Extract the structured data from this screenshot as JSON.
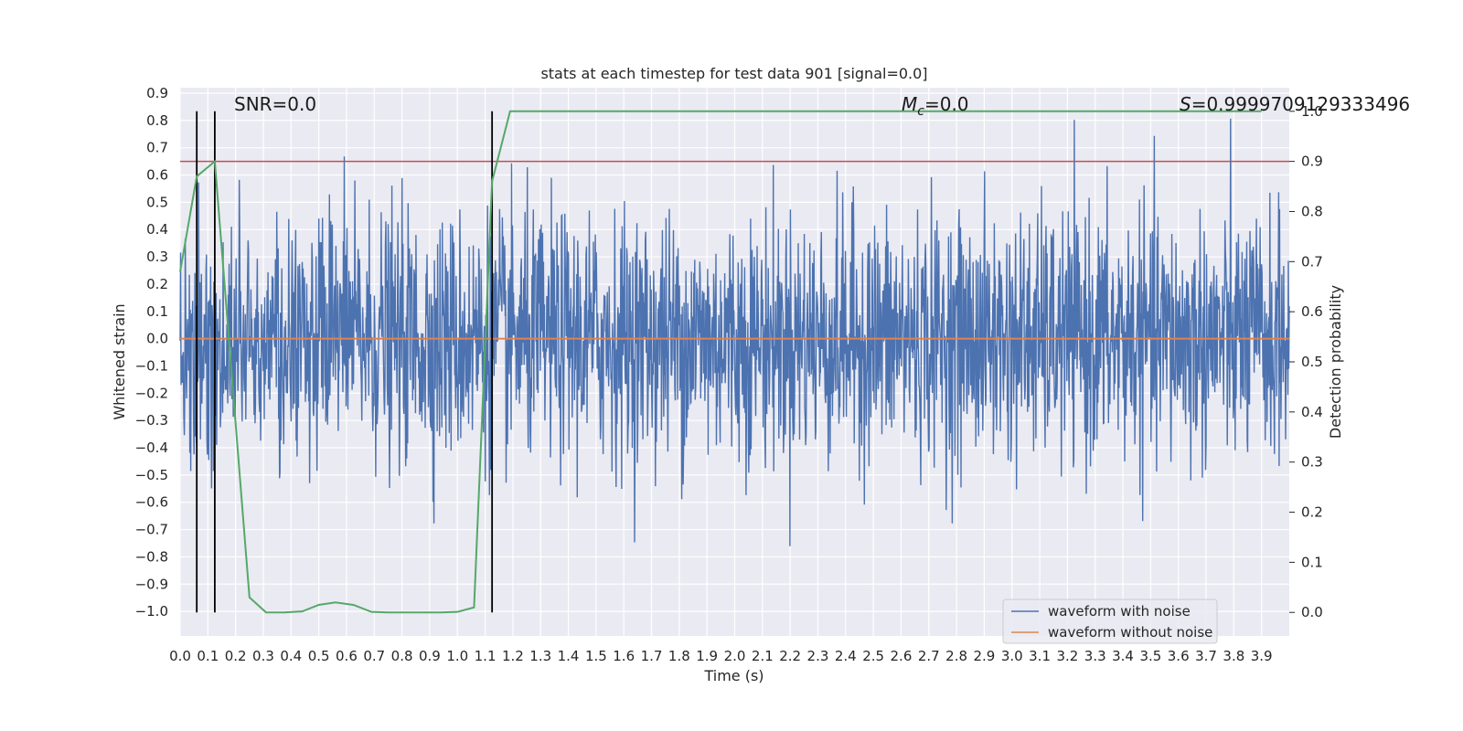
{
  "chart_data": {
    "type": "line",
    "title": "stats at each timestep for test data 901 [signal=0.0]",
    "xlabel": "Time (s)",
    "ylabel": "Whitened strain",
    "y2label": "Detection probability",
    "xlim": [
      0.0,
      4.0
    ],
    "ylim": [
      -1.09,
      0.92
    ],
    "y2lim": [
      -0.047,
      1.047
    ],
    "x_ticks": [
      0.0,
      0.1,
      0.2,
      0.3,
      0.4,
      0.5,
      0.6,
      0.7,
      0.8,
      0.9,
      1.0,
      1.1,
      1.2,
      1.3,
      1.4,
      1.5,
      1.6,
      1.7,
      1.8,
      1.9,
      2.0,
      2.1,
      2.2,
      2.3,
      2.4,
      2.5,
      2.6,
      2.7,
      2.8,
      2.9,
      3.0,
      3.1,
      3.2,
      3.3,
      3.4,
      3.5,
      3.6,
      3.7,
      3.8,
      3.9
    ],
    "x_tick_labels": [
      "0.0",
      "0.1",
      "0.2",
      "0.3",
      "0.4",
      "0.5",
      "0.6",
      "0.7",
      "0.8",
      "0.9",
      "1.0",
      "1.1",
      "1.2",
      "1.3",
      "1.4",
      "1.5",
      "1.6",
      "1.7",
      "1.8",
      "1.9",
      "2.0",
      "2.1",
      "2.2",
      "2.3",
      "2.4",
      "2.5",
      "2.6",
      "2.7",
      "2.8",
      "2.9",
      "3.0",
      "3.1",
      "3.2",
      "3.3",
      "3.4",
      "3.5",
      "3.6",
      "3.7",
      "3.8",
      "3.9"
    ],
    "y_ticks": [
      0.9,
      0.8,
      0.7,
      0.6,
      0.5,
      0.4,
      0.3,
      0.2,
      0.1,
      0.0,
      -0.1,
      -0.2,
      -0.3,
      -0.4,
      -0.5,
      -0.6,
      -0.7,
      -0.8,
      -0.9,
      -1.0
    ],
    "y_tick_labels": [
      "0.9",
      "0.8",
      "0.7",
      "0.6",
      "0.5",
      "0.4",
      "0.3",
      "0.2",
      "0.1",
      "0.0",
      "−0.1",
      "−0.2",
      "−0.3",
      "−0.4",
      "−0.5",
      "−0.6",
      "−0.7",
      "−0.8",
      "−0.9",
      "−1.0"
    ],
    "y2_ticks": [
      1.0,
      0.9,
      0.8,
      0.7,
      0.6,
      0.5,
      0.4,
      0.3,
      0.2,
      0.1,
      0.0
    ],
    "y2_tick_labels": [
      "1.0",
      "0.9",
      "0.8",
      "0.7",
      "0.6",
      "0.5",
      "0.4",
      "0.3",
      "0.2",
      "0.1",
      "0.0"
    ],
    "grid": true,
    "legend_position": "lower-right",
    "series": [
      {
        "name": "waveform with noise",
        "axis": "left",
        "color": "#4c72b0",
        "description_values": {
          "typical_abs_amplitude": 0.3,
          "max": 0.84,
          "min": -1.0,
          "duration_s": 4.0
        }
      },
      {
        "name": "waveform without noise",
        "axis": "left",
        "color": "#dd8452",
        "x": [
          0.0,
          4.0
        ],
        "values": [
          0.0,
          0.0
        ]
      },
      {
        "name": "detection probability",
        "axis": "right",
        "color": "#55a868",
        "x": [
          0.0,
          0.06,
          0.125,
          0.25,
          0.31,
          0.375,
          0.44,
          0.5,
          0.56,
          0.625,
          0.69,
          0.75,
          0.81,
          0.875,
          0.94,
          1.0,
          1.06,
          1.125,
          1.19,
          1.25,
          1.5,
          2.0,
          2.5,
          3.0,
          3.5,
          3.9
        ],
        "values": [
          0.68,
          0.87,
          0.9,
          0.03,
          0.0,
          0.0,
          0.002,
          0.015,
          0.02,
          0.015,
          0.001,
          0.0,
          0.0,
          0.0,
          0.0,
          0.001,
          0.01,
          0.86,
          1.0,
          1.0,
          1.0,
          1.0,
          1.0,
          1.0,
          1.0,
          1.0
        ]
      }
    ],
    "threshold": {
      "axis": "right",
      "value": 0.9,
      "color": "#c44e52"
    },
    "vlines": {
      "x": [
        0.06,
        0.125,
        1.125
      ],
      "ymin": 0.0,
      "ymax": 1.0,
      "axis": "right",
      "color": "#000000"
    },
    "annotations": {
      "snr": "SNR=0.0",
      "mc_symbol": "M",
      "mc_sub": "c",
      "mc_value": "=0.0",
      "s_symbol": "S",
      "s_value": "=0.9999709129333496"
    },
    "colors": {
      "plot_background": "#eaeaf2",
      "grid": "#ffffff",
      "text": "#262626"
    }
  }
}
